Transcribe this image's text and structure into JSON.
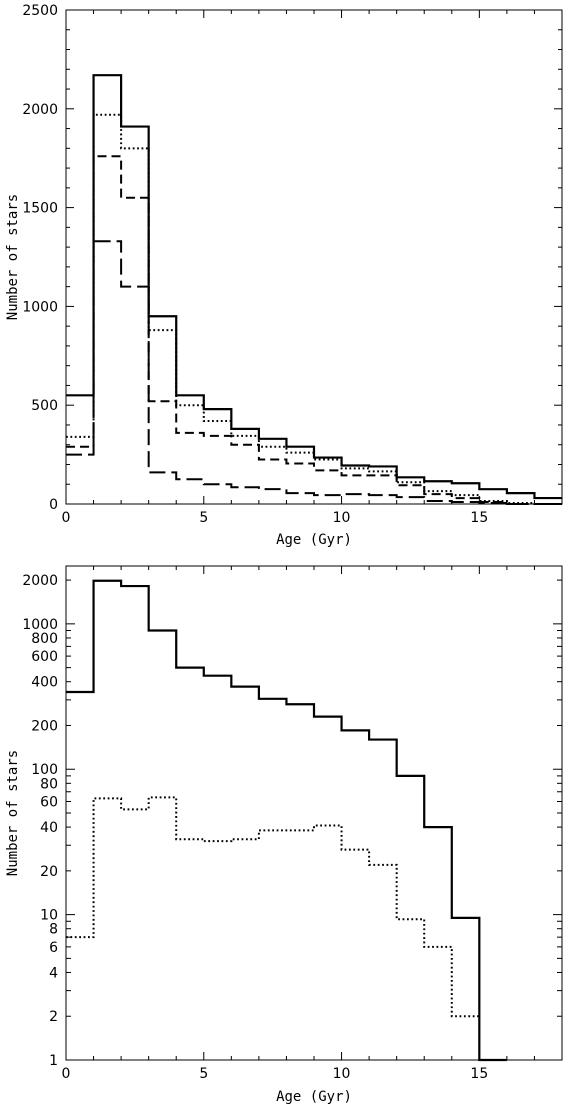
{
  "chart_data": [
    {
      "type": "line",
      "title": "",
      "xlabel": "Age (Gyr)",
      "ylabel": "Number of stars",
      "xlim": [
        0,
        18
      ],
      "ylim": [
        0,
        2500
      ],
      "yscale": "linear",
      "xticks": [
        0,
        5,
        10,
        15
      ],
      "yticks": [
        0,
        500,
        1000,
        1500,
        2000,
        2500
      ],
      "grid": false,
      "legend": "none",
      "bin_edges": [
        0,
        1,
        2,
        3,
        4,
        5,
        6,
        7,
        8,
        9,
        10,
        11,
        12,
        13,
        14,
        15,
        16,
        17,
        18
      ],
      "series": [
        {
          "style": "solid",
          "values": [
            550,
            2170,
            1910,
            950,
            550,
            480,
            380,
            330,
            290,
            235,
            195,
            190,
            135,
            115,
            105,
            75,
            55,
            30
          ]
        },
        {
          "style": "dotted",
          "values": [
            340,
            1970,
            1800,
            880,
            500,
            420,
            345,
            290,
            260,
            225,
            180,
            165,
            110,
            65,
            45,
            15,
            5,
            0
          ]
        },
        {
          "style": "short-dashed",
          "values": [
            290,
            1760,
            1550,
            520,
            360,
            345,
            300,
            225,
            205,
            170,
            145,
            145,
            95,
            50,
            30,
            10,
            0,
            0
          ]
        },
        {
          "style": "long-dashed",
          "values": [
            250,
            1330,
            1100,
            160,
            125,
            100,
            85,
            75,
            55,
            45,
            50,
            45,
            35,
            15,
            10,
            5,
            0,
            0
          ]
        }
      ]
    },
    {
      "type": "line",
      "title": "",
      "xlabel": "Age (Gyr)",
      "ylabel": "Number of stars",
      "xlim": [
        0,
        18
      ],
      "ylim": [
        1,
        2500
      ],
      "yscale": "log",
      "xticks": [
        0,
        5,
        10,
        15
      ],
      "yticks": [
        1,
        2,
        4,
        6,
        8,
        10,
        20,
        40,
        60,
        80,
        100,
        200,
        400,
        600,
        800,
        1000,
        2000
      ],
      "grid": false,
      "legend": "none",
      "bin_edges": [
        0,
        1,
        2,
        3,
        4,
        5,
        6,
        7,
        8,
        9,
        10,
        11,
        12,
        13,
        14,
        15,
        16
      ],
      "series": [
        {
          "style": "solid",
          "values": [
            340,
            1980,
            1820,
            900,
            500,
            440,
            370,
            305,
            280,
            230,
            185,
            160,
            90,
            40,
            9.5,
            1
          ]
        },
        {
          "style": "dotted",
          "values": [
            7,
            63,
            53,
            64,
            33,
            32,
            33,
            38,
            38,
            41,
            28,
            22,
            9.3,
            6,
            2
          ]
        }
      ]
    }
  ]
}
